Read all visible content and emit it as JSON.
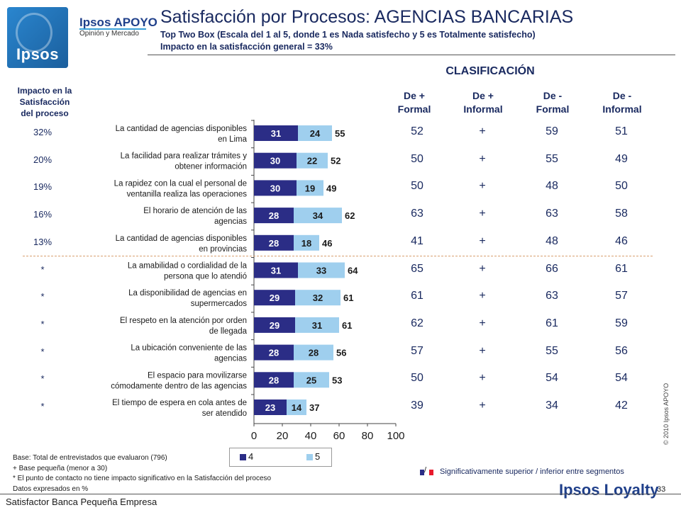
{
  "header": {
    "brand_name": "Ipsos APOYO",
    "brand_sub": "Opinión y Mercado",
    "logo_word": "Ipsos",
    "title": "Satisfacción por Procesos: AGENCIAS BANCARIAS",
    "subtitle": "Top Two Box  (Escala del 1 al 5, donde 1 es Nada satisfecho y 5 es Totalmente satisfecho)",
    "impact_note": "Impacto en la satisfacción general = 33%"
  },
  "impact_header": [
    "Impacto en la",
    "Satisfacción",
    "del proceso"
  ],
  "classification": {
    "title": "CLASIFICACIÓN",
    "columns": [
      {
        "line1": "De +",
        "line2": "Formal"
      },
      {
        "line1": "De +",
        "line2": "Informal"
      },
      {
        "line1": "De -",
        "line2": "Formal"
      },
      {
        "line1": "De  -",
        "line2": "Informal"
      }
    ]
  },
  "rows": [
    {
      "label1": "La cantidad de agencias disponibles",
      "label2": "en Lima",
      "impact": "32%",
      "v4": 31,
      "v5": 24,
      "total": 55,
      "c1": "52",
      "c2": "+",
      "c3": "59",
      "c4": "51"
    },
    {
      "label1": "La facilidad para realizar trámites y",
      "label2": "obtener información",
      "impact": "20%",
      "v4": 30,
      "v5": 22,
      "total": 52,
      "c1": "50",
      "c2": "+",
      "c3": "55",
      "c4": "49"
    },
    {
      "label1": "La rapidez con la cual el personal de",
      "label2": "ventanilla realiza las operaciones",
      "impact": "19%",
      "v4": 30,
      "v5": 19,
      "total": 49,
      "c1": "50",
      "c2": "+",
      "c3": "48",
      "c4": "50"
    },
    {
      "label1": "El horario de atención de las",
      "label2": "agencias",
      "impact": "16%",
      "v4": 28,
      "v5": 34,
      "total": 62,
      "c1": "63",
      "c2": "+",
      "c3": "63",
      "c4": "58"
    },
    {
      "label1": "La cantidad de agencias disponibles",
      "label2": "en provincias",
      "impact": "13%",
      "v4": 28,
      "v5": 18,
      "total": 46,
      "c1": "41",
      "c2": "+",
      "c3": "48",
      "c4": "46"
    },
    {
      "label1": "La amabilidad o cordialidad de la",
      "label2": "persona que lo atendió",
      "impact": "*",
      "v4": 31,
      "v5": 33,
      "total": 64,
      "c1": "65",
      "c2": "+",
      "c3": "66",
      "c4": "61"
    },
    {
      "label1": "La disponibilidad de agencias en",
      "label2": "supermercados",
      "impact": "*",
      "v4": 29,
      "v5": 32,
      "total": 61,
      "c1": "61",
      "c2": "+",
      "c3": "63",
      "c4": "57"
    },
    {
      "label1": "El respeto en la atención por orden",
      "label2": "de llegada",
      "impact": "*",
      "v4": 29,
      "v5": 31,
      "total": 61,
      "c1": "62",
      "c2": "+",
      "c3": "61",
      "c4": "59"
    },
    {
      "label1": "La ubicación conveniente de las",
      "label2": "agencias",
      "impact": "*",
      "v4": 28,
      "v5": 28,
      "total": 56,
      "c1": "57",
      "c2": "+",
      "c3": "55",
      "c4": "56"
    },
    {
      "label1": "El espacio para movilizarse",
      "label2": "cómodamente dentro de las agencias",
      "impact": "*",
      "v4": 28,
      "v5": 25,
      "total": 53,
      "c1": "50",
      "c2": "+",
      "c3": "54",
      "c4": "54"
    },
    {
      "label1": "El tiempo de espera en cola antes de",
      "label2": "ser atendido",
      "impact": "*",
      "v4": 23,
      "v5": 14,
      "total": 37,
      "c1": "39",
      "c2": "+",
      "c3": "34",
      "c4": "42"
    }
  ],
  "chart_data": {
    "type": "bar",
    "orientation": "horizontal",
    "stacked": true,
    "categories": [
      "La cantidad de agencias disponibles en Lima",
      "La facilidad para realizar trámites y obtener información",
      "La rapidez con la cual el personal de ventanilla realiza las operaciones",
      "El horario de atención de las agencias",
      "La cantidad de agencias disponibles en provincias",
      "La amabilidad o cordialidad de la persona que lo atendió",
      "La disponibilidad de agencias en supermercados",
      "El respeto en la atención por orden de llegada",
      "La ubicación conveniente de las agencias",
      "El espacio para movilizarse cómodamente dentro de las agencias",
      "El tiempo de espera en cola antes de ser atendido"
    ],
    "series": [
      {
        "name": "4",
        "values": [
          31,
          30,
          30,
          28,
          28,
          31,
          29,
          29,
          28,
          28,
          23
        ],
        "color": "#2b2d86"
      },
      {
        "name": "5",
        "values": [
          24,
          22,
          19,
          34,
          18,
          33,
          32,
          31,
          28,
          25,
          14
        ],
        "color": "#9fcfee"
      }
    ],
    "totals": [
      55,
      52,
      49,
      62,
      46,
      64,
      61,
      61,
      56,
      53,
      37
    ],
    "xlim": [
      0,
      100
    ],
    "xticks": [
      "0",
      "20",
      "40",
      "60",
      "80",
      "100"
    ],
    "legend_position": "bottom"
  },
  "significance_note": "Significativamente superior / inferior entre segmentos",
  "significance_colors": {
    "superior": "#2b2d86",
    "inferior": "#e8192c"
  },
  "footnotes": [
    "Base: Total de entrevistados que evaluaron (796)",
    "+ Base pequeña (menor a 30)",
    "* El punto de contacto no tiene impacto significativo en la Satisfacción del proceso",
    "Datos expresados en %"
  ],
  "copyright": "© 2010 Ipsos APOYO",
  "page_number": "33",
  "footer_left": "Satisfactor Banca Pequeña Empresa",
  "footer_brand": "Ipsos Loyalty"
}
